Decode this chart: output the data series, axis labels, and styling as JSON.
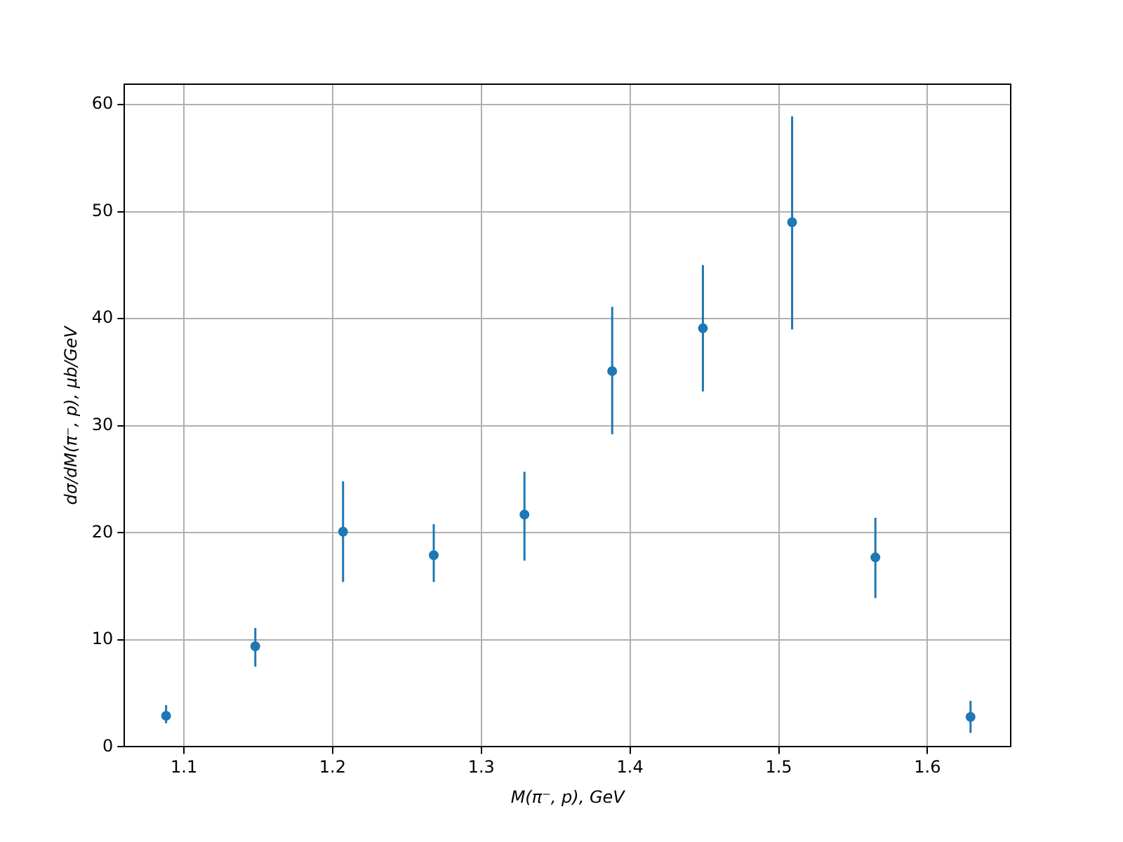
{
  "chart_data": {
    "type": "scatter",
    "xlabel": "M(π⁻, p), GeV",
    "ylabel": "dσ/dM(π⁻, p), μb/GeV",
    "x": [
      1.088,
      1.148,
      1.207,
      1.268,
      1.329,
      1.388,
      1.449,
      1.509,
      1.565,
      1.629
    ],
    "series": [
      {
        "color": "#1f77b4",
        "values": [
          2.9,
          9.4,
          20.1,
          17.9,
          21.7,
          35.1,
          39.1,
          49.0,
          17.7,
          2.8
        ],
        "errors": [
          [
            2.2,
            3.9
          ],
          [
            7.5,
            11.1
          ],
          [
            15.4,
            24.8
          ],
          [
            15.4,
            20.8
          ],
          [
            17.4,
            25.7
          ],
          [
            29.2,
            41.1
          ],
          [
            33.2,
            45.0
          ],
          [
            39.0,
            58.9
          ],
          [
            13.9,
            21.4
          ],
          [
            1.3,
            4.3
          ]
        ]
      }
    ],
    "xlim": [
      1.06,
      1.656
    ],
    "ylim": [
      0,
      61.9
    ],
    "xticks": [
      1.1,
      1.2,
      1.3,
      1.4,
      1.5,
      1.6
    ],
    "yticks": [
      0,
      10,
      20,
      30,
      40,
      50,
      60
    ],
    "grid": true,
    "marker": "circle"
  }
}
